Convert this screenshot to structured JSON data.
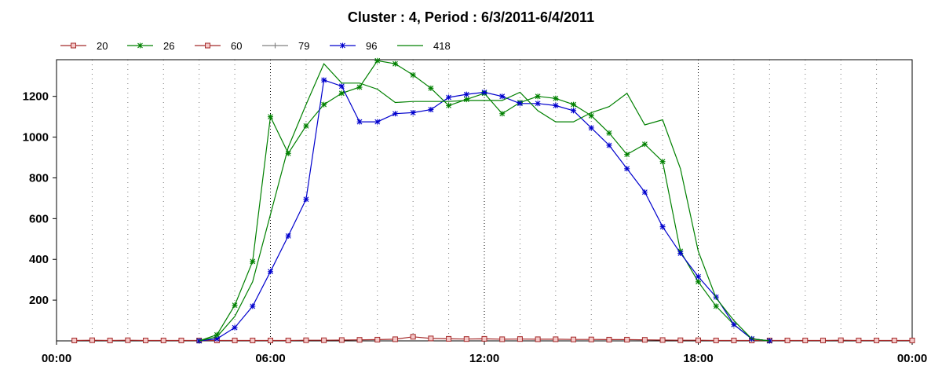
{
  "chart_data": {
    "type": "line",
    "title": "Cluster : 4, Period : 6/3/2011-6/4/2011",
    "xlabel": "",
    "ylabel": "",
    "x_unit": "hours",
    "xlim": [
      0,
      24
    ],
    "ylim": [
      0,
      1380
    ],
    "x_ticks": [
      0,
      6,
      12,
      18,
      24
    ],
    "x_tick_labels": [
      "00:00",
      "06:00",
      "12:00",
      "18:00",
      "00:00"
    ],
    "y_ticks": [
      200,
      400,
      600,
      800,
      1000,
      1200
    ],
    "y_tick_labels": [
      "200",
      "400",
      "600",
      "800",
      "1000",
      "1200"
    ],
    "grid": "vertical dotted lines each hour",
    "legend_position": "top-left",
    "series": [
      {
        "name": "20",
        "color": "#a52a2a",
        "marker": "square",
        "x": [
          0.5,
          1,
          1.5,
          2,
          2.5,
          3,
          3.5,
          4,
          4.5,
          5,
          5.5,
          6,
          6.5,
          7,
          7.5,
          8,
          8.5,
          9,
          9.5,
          10,
          10.5,
          11,
          11.5,
          12,
          12.5,
          13,
          13.5,
          14,
          14.5,
          15,
          15.5,
          16,
          16.5,
          17,
          17.5,
          18,
          18.5,
          19,
          19.5,
          20,
          20.5,
          21,
          21.5,
          22,
          22.5,
          23,
          23.5,
          24
        ],
        "y": [
          2,
          3,
          2,
          3,
          2,
          2,
          2,
          2,
          2,
          2,
          2,
          2,
          2,
          3,
          3,
          4,
          5,
          6,
          8,
          20,
          12,
          10,
          9,
          10,
          8,
          9,
          8,
          8,
          7,
          7,
          6,
          6,
          5,
          4,
          3,
          3,
          2,
          2,
          2,
          2,
          2,
          2,
          2,
          3,
          2,
          2,
          2,
          2
        ]
      },
      {
        "name": "26",
        "color": "#008000",
        "marker": "star",
        "x": [
          4,
          4.5,
          5,
          5.5,
          6,
          6.5,
          7,
          7.5,
          8,
          8.5,
          9,
          9.5,
          10,
          10.5,
          11,
          11.5,
          12,
          12.5,
          13,
          13.5,
          14,
          14.5,
          15,
          15.5,
          16,
          16.5,
          17,
          17.5,
          18,
          18.5,
          19,
          19.5,
          20
        ],
        "y": [
          0,
          30,
          175,
          390,
          1100,
          920,
          1055,
          1160,
          1215,
          1245,
          1375,
          1360,
          1305,
          1240,
          1155,
          1185,
          1215,
          1115,
          1170,
          1200,
          1190,
          1160,
          1105,
          1020,
          915,
          965,
          880,
          440,
          290,
          170,
          80,
          10,
          0
        ]
      },
      {
        "name": "60",
        "color": "#a52a2a",
        "marker": "square",
        "x": [],
        "y": []
      },
      {
        "name": "79",
        "color": "#808080",
        "marker": "plus",
        "x": [],
        "y": []
      },
      {
        "name": "96",
        "color": "#0000cd",
        "marker": "star",
        "x": [
          4,
          4.5,
          5,
          5.5,
          6,
          6.5,
          7,
          7.5,
          8,
          8.5,
          9,
          9.5,
          10,
          10.5,
          11,
          11.5,
          12,
          12.5,
          13,
          13.5,
          14,
          14.5,
          15,
          15.5,
          16,
          16.5,
          17,
          17.5,
          18,
          18.5,
          19,
          19.5,
          20
        ],
        "y": [
          0,
          10,
          65,
          170,
          340,
          515,
          695,
          1280,
          1250,
          1075,
          1075,
          1115,
          1120,
          1135,
          1195,
          1210,
          1220,
          1200,
          1165,
          1165,
          1155,
          1130,
          1045,
          960,
          845,
          730,
          560,
          430,
          315,
          215,
          80,
          10,
          0
        ]
      },
      {
        "name": "418",
        "color": "#008000",
        "marker": "none",
        "x": [
          4,
          4.5,
          5,
          5.5,
          6,
          6.5,
          7,
          7.5,
          8,
          8.5,
          9,
          9.5,
          10,
          10.5,
          11,
          11.5,
          12,
          12.5,
          13,
          13.5,
          14,
          14.5,
          15,
          15.5,
          16,
          16.5,
          17,
          17.5,
          18,
          18.5,
          19,
          19.5,
          20
        ],
        "y": [
          0,
          20,
          120,
          290,
          620,
          950,
          1160,
          1360,
          1265,
          1265,
          1235,
          1170,
          1175,
          1175,
          1175,
          1180,
          1180,
          1180,
          1220,
          1130,
          1075,
          1075,
          1120,
          1150,
          1215,
          1060,
          1085,
          845,
          440,
          210,
          100,
          10,
          0
        ]
      }
    ]
  }
}
